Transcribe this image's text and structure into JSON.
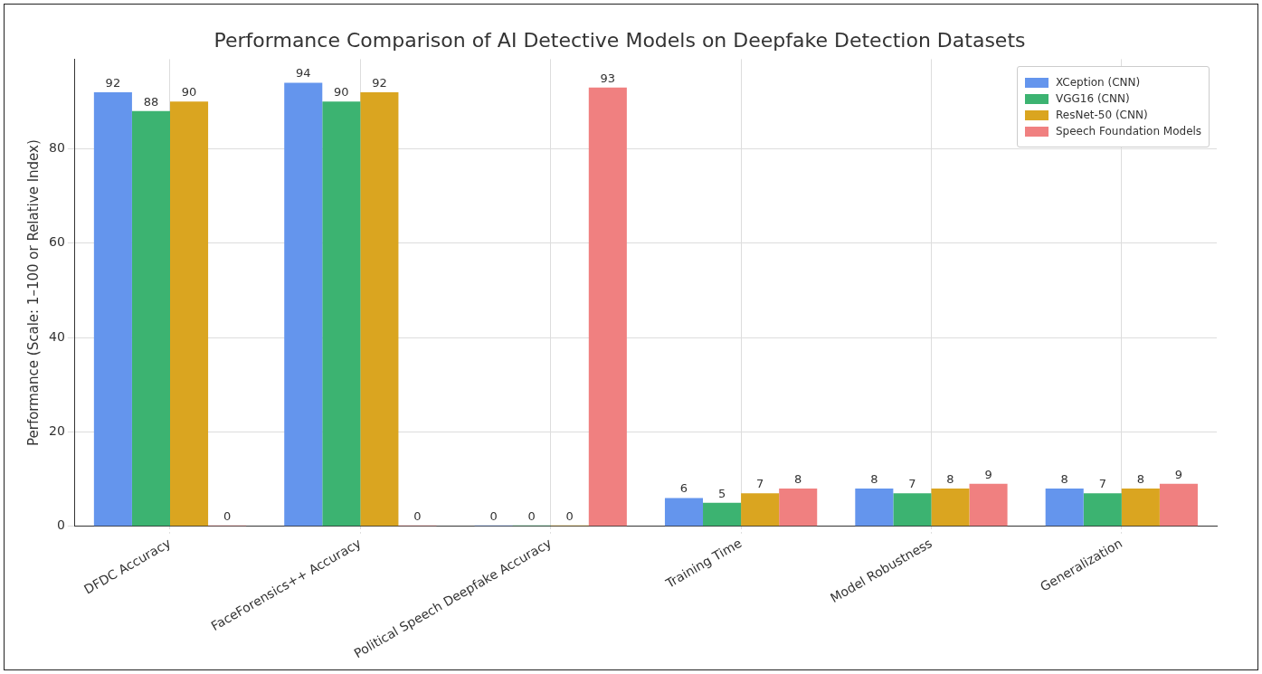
{
  "chart_data": {
    "type": "bar",
    "title": "Performance Comparison of AI Detective Models on Deepfake Detection Datasets",
    "ylabel": "Performance (Scale: 1–100 or Relative Index)",
    "categories": [
      "DFDC Accuracy",
      "FaceForensics++ Accuracy",
      "Political Speech Deepfake Accuracy",
      "Training Time",
      "Model Robustness",
      "Generalization"
    ],
    "series": [
      {
        "name": "XCeption (CNN)",
        "color": "#6495ed",
        "values": [
          92,
          94,
          0,
          6,
          8,
          8
        ]
      },
      {
        "name": "VGG16 (CNN)",
        "color": "#3cb371",
        "values": [
          88,
          90,
          0,
          5,
          7,
          7
        ]
      },
      {
        "name": "ResNet-50 (CNN)",
        "color": "#daa520",
        "values": [
          90,
          92,
          0,
          7,
          8,
          8
        ]
      },
      {
        "name": "Speech Foundation Models",
        "color": "#f08080",
        "values": [
          0,
          0,
          93,
          8,
          9,
          9
        ]
      }
    ],
    "ylim": [
      0,
      99
    ],
    "yticks": [
      0,
      20,
      40,
      60,
      80
    ],
    "grid": true,
    "legend": "top right",
    "data_labels": true
  }
}
